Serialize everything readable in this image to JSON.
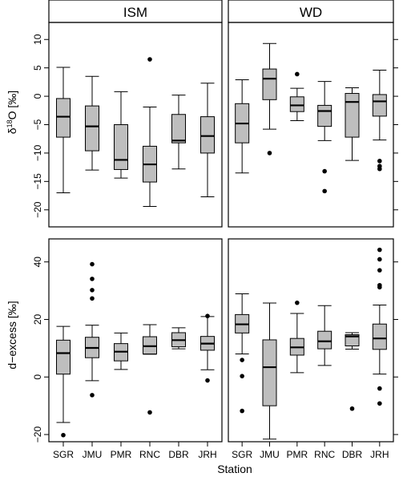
{
  "figure": {
    "xlabel": "Station",
    "ylabel_top_main": "δ",
    "ylabel_top_sup": "18",
    "ylabel_top_rest": "O [‰]",
    "ylabel_bottom": "d−excess [‰]"
  },
  "chart_data": [
    {
      "type": "box",
      "strip": "ISM",
      "categories": [
        "SGR",
        "JMU",
        "PMR",
        "RNC",
        "DBR",
        "JRH"
      ],
      "ylim": [
        -23,
        13
      ],
      "yticks": [
        -20,
        -15,
        -10,
        -5,
        0,
        5,
        10
      ],
      "boxes": [
        {
          "min": -17,
          "q1": -7.2,
          "median": -3.6,
          "q3": -0.4,
          "max": 5.1,
          "outliers": []
        },
        {
          "min": -13,
          "q1": -9.6,
          "median": -5.3,
          "q3": -1.7,
          "max": 3.5,
          "outliers": []
        },
        {
          "min": -14.4,
          "q1": -12.9,
          "median": -11.2,
          "q3": -5,
          "max": 0.8,
          "outliers": []
        },
        {
          "min": -19.4,
          "q1": -15.1,
          "median": -12,
          "q3": -8.8,
          "max": -1.9,
          "outliers": [
            6.5
          ]
        },
        {
          "min": -12.8,
          "q1": -8.2,
          "median": -7.8,
          "q3": -3.2,
          "max": 0.2,
          "outliers": []
        },
        {
          "min": -17.7,
          "q1": -10,
          "median": -7,
          "q3": -3.6,
          "max": 2.3,
          "outliers": []
        }
      ]
    },
    {
      "type": "box",
      "strip": "WD",
      "categories": [
        "SGR",
        "JMU",
        "PMR",
        "RNC",
        "DBR",
        "JRH"
      ],
      "ylim": [
        -23,
        13
      ],
      "yticks": [
        -20,
        -15,
        -10,
        -5,
        0,
        5,
        10
      ],
      "boxes": [
        {
          "min": -13.5,
          "q1": -8.2,
          "median": -4.8,
          "q3": -1.3,
          "max": 2.9,
          "outliers": []
        },
        {
          "min": -5.8,
          "q1": -0.6,
          "median": 3.1,
          "q3": 4.8,
          "max": 9.3,
          "outliers": [
            -10
          ]
        },
        {
          "min": -4.3,
          "q1": -2.7,
          "median": -1.6,
          "q3": -0.1,
          "max": 1.4,
          "outliers": [
            3.9
          ]
        },
        {
          "min": -7.8,
          "q1": -5.3,
          "median": -2.6,
          "q3": -1.6,
          "max": 2.6,
          "outliers": [
            -13.2,
            -16.7
          ]
        },
        {
          "min": -11.3,
          "q1": -7.2,
          "median": -1,
          "q3": 0.5,
          "max": 1.5,
          "outliers": []
        },
        {
          "min": -7.7,
          "q1": -3.5,
          "median": -0.9,
          "q3": 0.3,
          "max": 4.6,
          "outliers": [
            -11.4,
            -12.3,
            -12.8
          ]
        }
      ]
    },
    {
      "type": "box",
      "categories": [
        "SGR",
        "JMU",
        "PMR",
        "RNC",
        "DBR",
        "JRH"
      ],
      "ylim": [
        -22.5,
        48
      ],
      "yticks": [
        -20,
        0,
        20,
        40
      ],
      "boxes": [
        {
          "min": -15.8,
          "q1": 1,
          "median": 8.3,
          "q3": 12.8,
          "max": 17.6,
          "outliers": [
            -20.2
          ]
        },
        {
          "min": -1.3,
          "q1": 6.7,
          "median": 10.1,
          "q3": 13.8,
          "max": 18,
          "outliers": [
            -6.3,
            27.3,
            30.2,
            34.1,
            39.2
          ]
        },
        {
          "min": 2.6,
          "q1": 5.6,
          "median": 8.8,
          "q3": 11.6,
          "max": 15.3,
          "outliers": []
        },
        {
          "min": 7.9,
          "q1": 8,
          "median": 10.7,
          "q3": 14,
          "max": 18.2,
          "outliers": [
            -12.3
          ]
        },
        {
          "min": 9.8,
          "q1": 10.5,
          "median": 12.8,
          "q3": 15.4,
          "max": 17.1,
          "outliers": []
        },
        {
          "min": 2.5,
          "q1": 9.3,
          "median": 11.6,
          "q3": 14.1,
          "max": 21,
          "outliers": [
            -1.2,
            21.2
          ]
        }
      ]
    },
    {
      "type": "box",
      "categories": [
        "SGR",
        "JMU",
        "PMR",
        "RNC",
        "DBR",
        "JRH"
      ],
      "ylim": [
        -22.5,
        48
      ],
      "yticks": [
        -20,
        0,
        20,
        40
      ],
      "boxes": [
        {
          "min": 8,
          "q1": 15.3,
          "median": 18.3,
          "q3": 21.7,
          "max": 28.9,
          "outliers": [
            5.9,
            0.3,
            -11.8
          ]
        },
        {
          "min": -21.6,
          "q1": -10,
          "median": 3.4,
          "q3": 12.9,
          "max": 25.7,
          "outliers": []
        },
        {
          "min": 1.5,
          "q1": 7.6,
          "median": 10.3,
          "q3": 13.4,
          "max": 22.1,
          "outliers": [
            25.8
          ]
        },
        {
          "min": 4,
          "q1": 9.8,
          "median": 12.4,
          "q3": 15.9,
          "max": 24.8,
          "outliers": []
        },
        {
          "min": 9.7,
          "q1": 10.8,
          "median": 14.1,
          "q3": 14.7,
          "max": 15.4,
          "outliers": [
            -11
          ]
        },
        {
          "min": 1,
          "q1": 9.6,
          "median": 13.4,
          "q3": 18.4,
          "max": 25,
          "outliers": [
            -9.2,
            -4,
            31.2,
            31.9,
            37.1,
            40.9,
            44.2
          ]
        }
      ]
    }
  ]
}
